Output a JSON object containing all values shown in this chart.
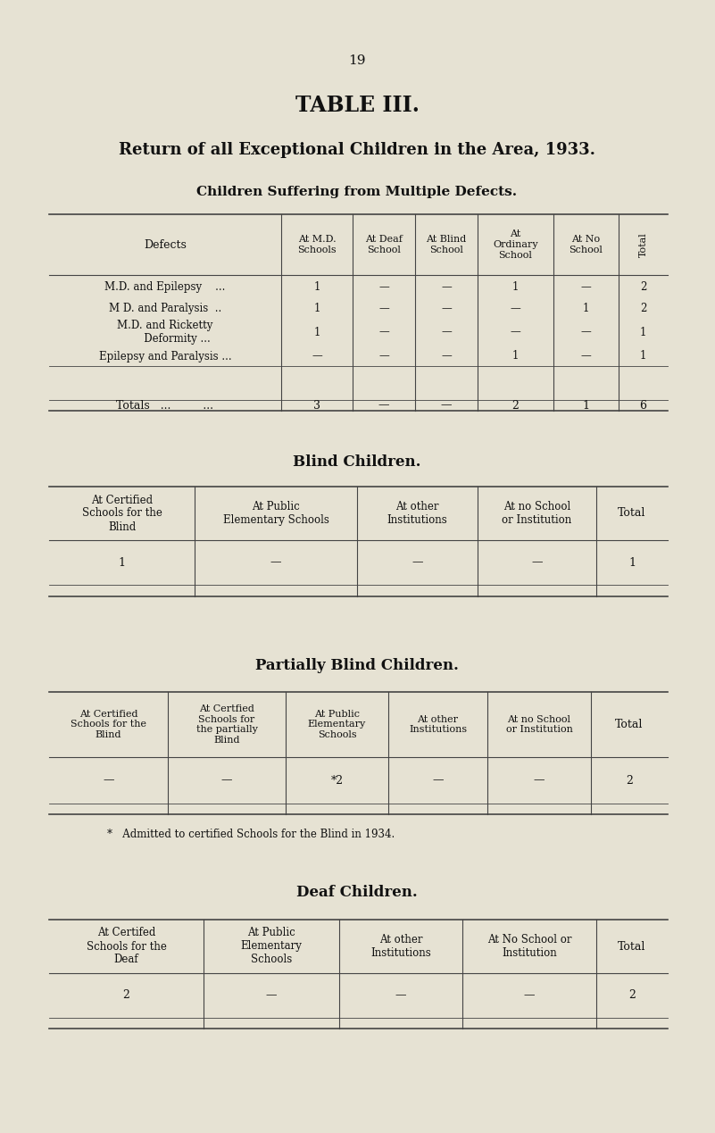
{
  "bg_color": "#e6e2d3",
  "text_color": "#111111",
  "line_color": "#444444",
  "page_number": "19",
  "title": "TABLE III.",
  "subtitle": "Return of all Exceptional Children in the Area, 1933.",
  "t1_section": "Children Suffering from Multiple Defects.",
  "t2_section": "Blind Children.",
  "t3_section": "Partially Blind Children.",
  "t4_section": "Deaf Children.",
  "footnote": "*   Admitted to certified Schools for the Blind in 1934."
}
